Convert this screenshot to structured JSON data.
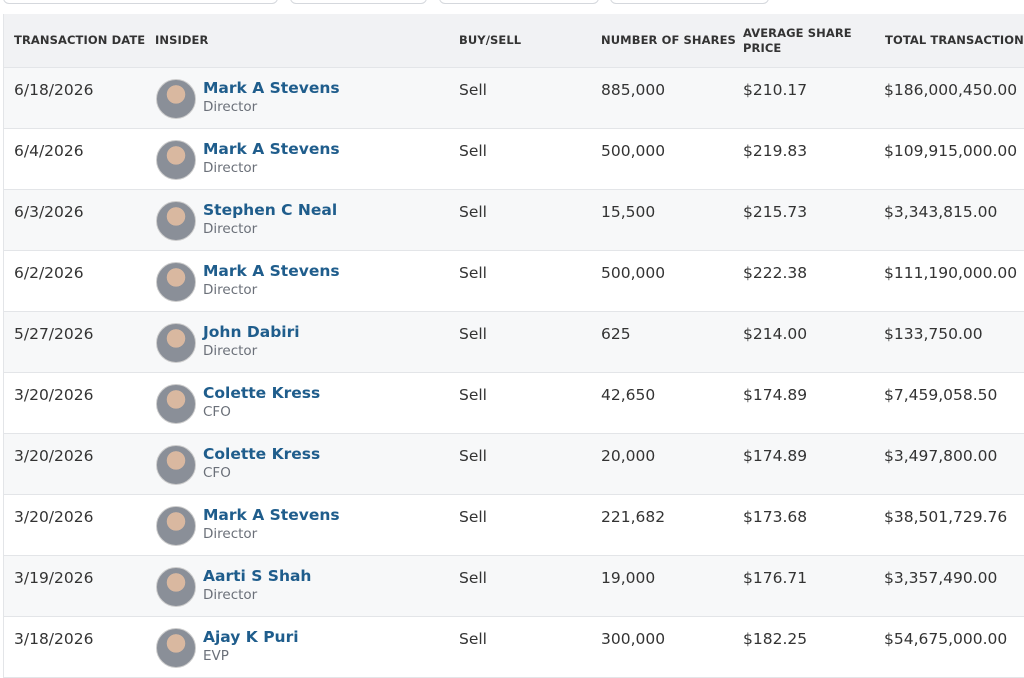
{
  "table": {
    "columns": [
      "Transaction Date",
      "Insider",
      "Buy/Sell",
      "Number of Shares",
      "Average Share Price",
      "Total Transaction"
    ],
    "rows": [
      {
        "date": "6/18/2026",
        "name": "Mark A Stevens",
        "role": "Director",
        "type": "Sell",
        "shares": "885,000",
        "price": "$210.17",
        "total": "$186,000,450.00"
      },
      {
        "date": "6/4/2026",
        "name": "Mark A Stevens",
        "role": "Director",
        "type": "Sell",
        "shares": "500,000",
        "price": "$219.83",
        "total": "$109,915,000.00"
      },
      {
        "date": "6/3/2026",
        "name": "Stephen C Neal",
        "role": "Director",
        "type": "Sell",
        "shares": "15,500",
        "price": "$215.73",
        "total": "$3,343,815.00"
      },
      {
        "date": "6/2/2026",
        "name": "Mark A Stevens",
        "role": "Director",
        "type": "Sell",
        "shares": "500,000",
        "price": "$222.38",
        "total": "$111,190,000.00"
      },
      {
        "date": "5/27/2026",
        "name": "John Dabiri",
        "role": "Director",
        "type": "Sell",
        "shares": "625",
        "price": "$214.00",
        "total": "$133,750.00"
      },
      {
        "date": "3/20/2026",
        "name": "Colette Kress",
        "role": "CFO",
        "type": "Sell",
        "shares": "42,650",
        "price": "$174.89",
        "total": "$7,459,058.50"
      },
      {
        "date": "3/20/2026",
        "name": "Colette Kress",
        "role": "CFO",
        "type": "Sell",
        "shares": "20,000",
        "price": "$174.89",
        "total": "$3,497,800.00"
      },
      {
        "date": "3/20/2026",
        "name": "Mark A Stevens",
        "role": "Director",
        "type": "Sell",
        "shares": "221,682",
        "price": "$173.68",
        "total": "$38,501,729.76"
      },
      {
        "date": "3/19/2026",
        "name": "Aarti S Shah",
        "role": "Director",
        "type": "Sell",
        "shares": "19,000",
        "price": "$176.71",
        "total": "$3,357,490.00"
      },
      {
        "date": "3/18/2026",
        "name": "Ajay K Puri",
        "role": "EVP",
        "type": "Sell",
        "shares": "300,000",
        "price": "$182.25",
        "total": "$54,675,000.00"
      }
    ]
  }
}
